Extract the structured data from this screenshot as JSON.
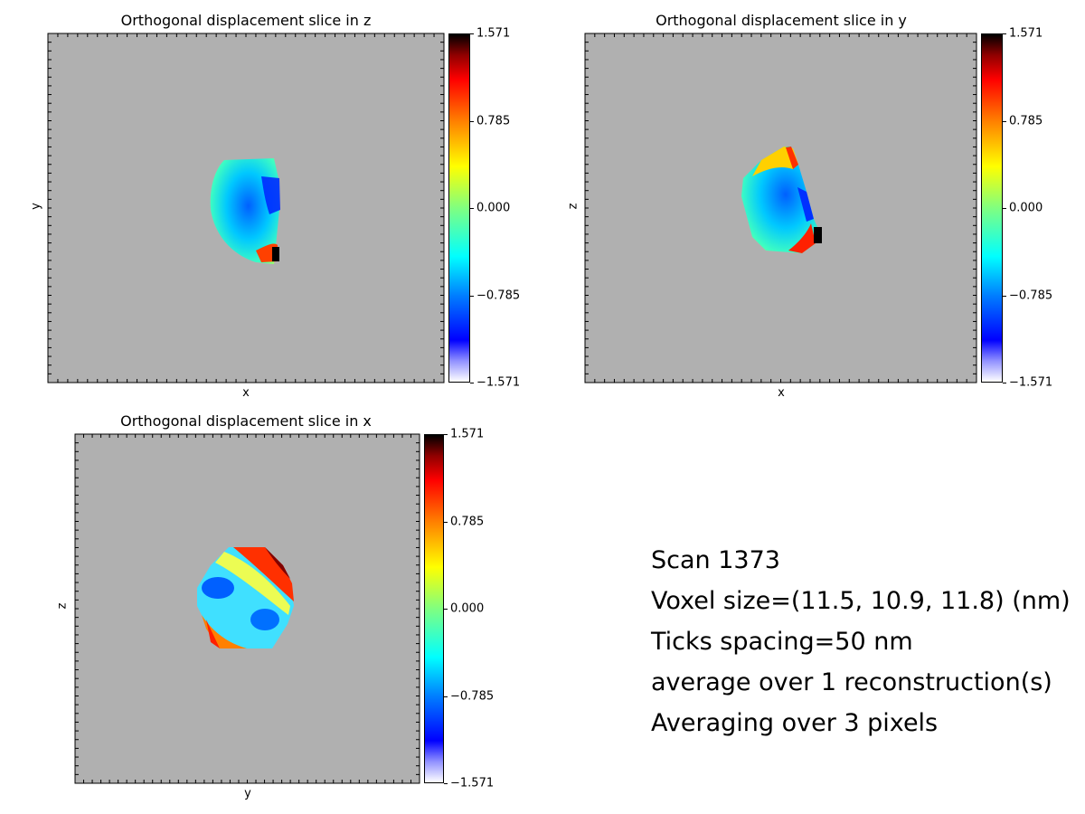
{
  "panels": [
    {
      "title": "Orthogonal displacement slice in z",
      "xlabel": "x",
      "ylabel": "y"
    },
    {
      "title": "Orthogonal displacement slice in y",
      "xlabel": "x",
      "ylabel": "z"
    },
    {
      "title": "Orthogonal displacement slice in x",
      "xlabel": "y",
      "ylabel": "z"
    }
  ],
  "colorbar": {
    "ticks": [
      "1.571",
      "0.785",
      "0.000",
      "−0.785",
      "−1.571"
    ],
    "range": [
      -1.571,
      1.571
    ],
    "colormap": "jet-like, white at minimum, black at maximum"
  },
  "info": {
    "scan": "Scan 1373",
    "voxel": "Voxel size=(11.5, 10.9, 11.8) (nm)",
    "ticks": "Ticks spacing=50 nm",
    "average": "average over 1 reconstruction(s)",
    "averaging": "Averaging over 3 pixels"
  },
  "colors": {
    "background_mask": "#b0b0b0"
  },
  "chart_data": [
    {
      "type": "heatmap",
      "title": "Orthogonal displacement slice in z",
      "xlabel": "x",
      "ylabel": "y",
      "clim": [
        -1.571,
        1.571
      ]
    },
    {
      "type": "heatmap",
      "title": "Orthogonal displacement slice in y",
      "xlabel": "x",
      "ylabel": "z",
      "clim": [
        -1.571,
        1.571
      ]
    },
    {
      "type": "heatmap",
      "title": "Orthogonal displacement slice in x",
      "xlabel": "y",
      "ylabel": "z",
      "clim": [
        -1.571,
        1.571
      ]
    }
  ]
}
